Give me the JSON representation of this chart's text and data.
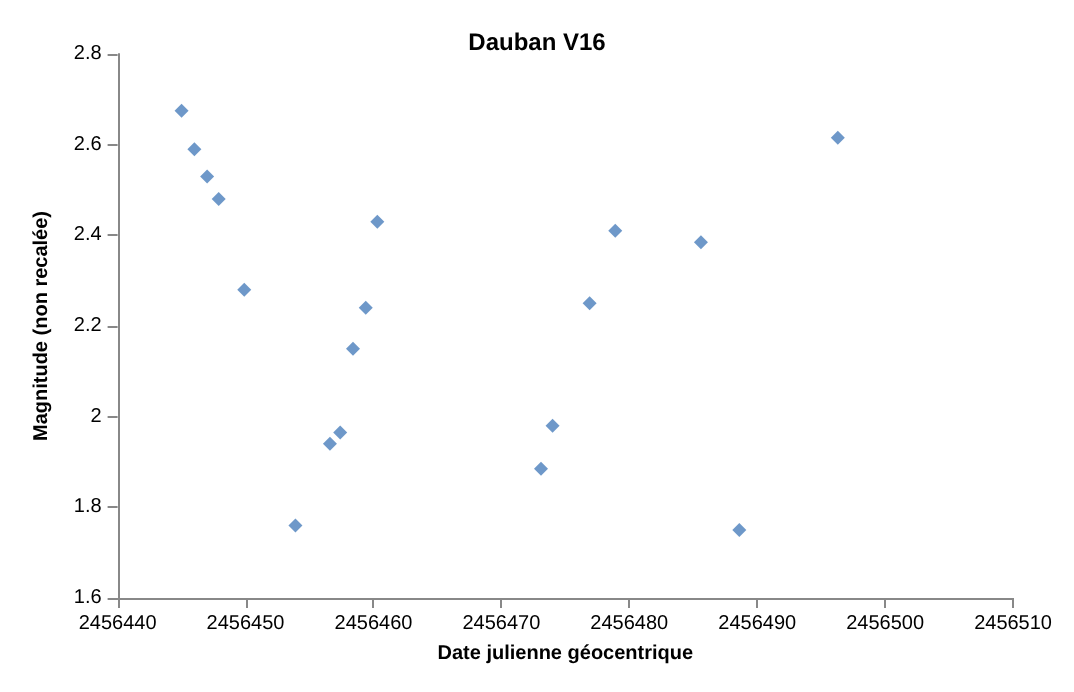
{
  "chart_data": {
    "type": "scatter",
    "title": "Dauban V16",
    "xlabel": "Date julienne géocentrique",
    "ylabel": "Magnitude (non recalée)",
    "x": [
      2456445,
      2456446,
      2456447,
      2456447.9,
      2456449.9,
      2456453.9,
      2456456.6,
      2456457.4,
      2456458.4,
      2456459.4,
      2456460.3,
      2456473.1,
      2456474,
      2456476.9,
      2456478.9,
      2456485.6,
      2456488.6,
      2456496.3
    ],
    "series": [
      {
        "color": "#4a7ebb",
        "values": [
          2.675,
          2.59,
          2.53,
          2.48,
          2.28,
          1.76,
          1.94,
          1.965,
          2.15,
          2.24,
          2.43,
          1.885,
          1.98,
          2.25,
          2.41,
          2.385,
          1.75,
          2.615
        ]
      }
    ],
    "xlim": [
      2456440,
      2456510
    ],
    "xticks": [
      2456440,
      2456450,
      2456460,
      2456470,
      2456480,
      2456490,
      2456500,
      2456510
    ],
    "ylim": [
      1.6,
      2.8
    ],
    "yticks": [
      1.6,
      1.8,
      2,
      2.2,
      2.4,
      2.6,
      2.8
    ],
    "grid": false,
    "marker": "diamond"
  }
}
